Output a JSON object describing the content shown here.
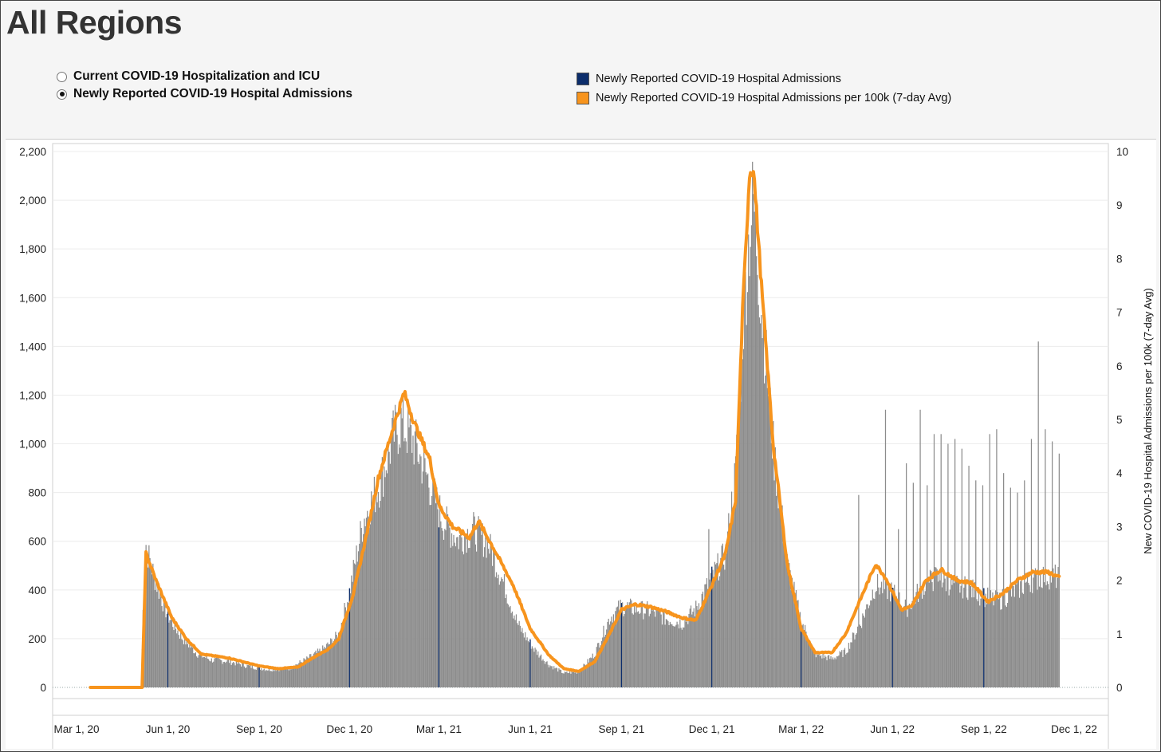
{
  "header": {
    "title": "All Regions"
  },
  "toggle": {
    "options": [
      {
        "label": "Current COVID-19 Hospitalization and ICU",
        "selected": false
      },
      {
        "label": "Newly Reported COVID-19 Hospital Admissions",
        "selected": true
      }
    ]
  },
  "legend": {
    "items": [
      {
        "label": "Newly Reported COVID-19 Hospital Admissions",
        "color": "#0c2d6b"
      },
      {
        "label": "Newly Reported COVID-19 Hospital Admissions per 100k (7-day Avg)",
        "color": "#f7941d"
      }
    ]
  },
  "chart_data": {
    "type": "bar+line",
    "title": "All Regions",
    "x_tick_labels": [
      "Mar 1, 20",
      "Jun 1, 20",
      "Sep 1, 20",
      "Dec 1, 20",
      "Mar 1, 21",
      "Jun 1, 21",
      "Sep 1, 21",
      "Dec 1, 21",
      "Mar 1, 22",
      "Jun 1, 22",
      "Sep 1, 22",
      "Dec 1, 22"
    ],
    "y_left": {
      "label": "",
      "range": [
        0,
        2200
      ],
      "ticks": [
        "0",
        "200",
        "400",
        "600",
        "800",
        "1,000",
        "1,200",
        "1,400",
        "1,600",
        "1,800",
        "2,000",
        "2,200"
      ]
    },
    "y_right": {
      "label": "New COVID-19 Hospital Admissions per 100k (7-day Avg)",
      "range": [
        0,
        10
      ],
      "ticks": [
        "0",
        "1",
        "2",
        "3",
        "4",
        "5",
        "6",
        "7",
        "8",
        "9",
        "10"
      ]
    },
    "bar_color": "#8c8c8c",
    "line_color": "#f7941d",
    "highlight_bar_color": "#0c2d6b",
    "daily_admissions_keypoints": [
      [
        "2020-03-15",
        0
      ],
      [
        "2020-05-05",
        0
      ],
      [
        "2020-05-08",
        480
      ],
      [
        "2020-05-12",
        560
      ],
      [
        "2020-05-20",
        440
      ],
      [
        "2020-06-01",
        300
      ],
      [
        "2020-06-15",
        210
      ],
      [
        "2020-07-01",
        140
      ],
      [
        "2020-07-15",
        115
      ],
      [
        "2020-08-01",
        110
      ],
      [
        "2020-08-20",
        90
      ],
      [
        "2020-09-10",
        75
      ],
      [
        "2020-10-01",
        80
      ],
      [
        "2020-10-20",
        120
      ],
      [
        "2020-11-05",
        160
      ],
      [
        "2020-11-20",
        220
      ],
      [
        "2020-12-01",
        400
      ],
      [
        "2020-12-15",
        700
      ],
      [
        "2021-01-01",
        860
      ],
      [
        "2021-01-15",
        1060
      ],
      [
        "2021-01-22",
        1110
      ],
      [
        "2021-02-05",
        1020
      ],
      [
        "2021-02-20",
        850
      ],
      [
        "2021-03-05",
        700
      ],
      [
        "2021-03-20",
        620
      ],
      [
        "2021-04-05",
        660
      ],
      [
        "2021-04-20",
        600
      ],
      [
        "2021-05-05",
        440
      ],
      [
        "2021-05-20",
        260
      ],
      [
        "2021-06-05",
        160
      ],
      [
        "2021-06-20",
        95
      ],
      [
        "2021-07-05",
        60
      ],
      [
        "2021-07-20",
        65
      ],
      [
        "2021-08-05",
        140
      ],
      [
        "2021-08-20",
        290
      ],
      [
        "2021-09-01",
        340
      ],
      [
        "2021-09-15",
        330
      ],
      [
        "2021-10-01",
        320
      ],
      [
        "2021-10-15",
        290
      ],
      [
        "2021-11-01",
        270
      ],
      [
        "2021-11-15",
        330
      ],
      [
        "2021-12-01",
        460
      ],
      [
        "2021-12-15",
        560
      ],
      [
        "2021-12-25",
        900
      ],
      [
        "2022-01-01",
        1500
      ],
      [
        "2022-01-08",
        1900
      ],
      [
        "2022-01-12",
        2040
      ],
      [
        "2022-01-20",
        1600
      ],
      [
        "2022-02-01",
        1000
      ],
      [
        "2022-02-15",
        520
      ],
      [
        "2022-03-01",
        280
      ],
      [
        "2022-03-15",
        140
      ],
      [
        "2022-04-01",
        120
      ],
      [
        "2022-04-15",
        150
      ],
      [
        "2022-05-01",
        280
      ],
      [
        "2022-05-15",
        430
      ],
      [
        "2022-06-01",
        400
      ],
      [
        "2022-06-15",
        330
      ],
      [
        "2022-07-01",
        420
      ],
      [
        "2022-07-15",
        460
      ],
      [
        "2022-08-01",
        430
      ],
      [
        "2022-08-15",
        420
      ],
      [
        "2022-09-01",
        380
      ],
      [
        "2022-09-15",
        360
      ],
      [
        "2022-10-01",
        400
      ],
      [
        "2022-10-15",
        440
      ],
      [
        "2022-11-01",
        470
      ],
      [
        "2022-11-15",
        460
      ]
    ],
    "weekly_spikes_2022": [
      [
        "2022-05-25",
        1140
      ],
      [
        "2022-06-07",
        650
      ],
      [
        "2022-06-15",
        920
      ],
      [
        "2022-06-22",
        840
      ],
      [
        "2022-06-29",
        1140
      ],
      [
        "2022-07-06",
        830
      ],
      [
        "2022-07-13",
        1040
      ],
      [
        "2022-07-20",
        1040
      ],
      [
        "2022-07-27",
        1000
      ],
      [
        "2022-08-03",
        1020
      ],
      [
        "2022-08-10",
        980
      ],
      [
        "2022-08-17",
        910
      ],
      [
        "2022-08-24",
        850
      ],
      [
        "2022-08-31",
        830
      ],
      [
        "2022-09-07",
        1040
      ],
      [
        "2022-09-14",
        1060
      ],
      [
        "2022-09-21",
        880
      ],
      [
        "2022-09-28",
        820
      ],
      [
        "2022-10-05",
        800
      ],
      [
        "2022-10-12",
        850
      ],
      [
        "2022-10-19",
        1020
      ],
      [
        "2022-10-26",
        1420
      ],
      [
        "2022-11-02",
        1060
      ],
      [
        "2022-11-09",
        1010
      ],
      [
        "2022-11-16",
        960
      ]
    ],
    "other_spikes": [
      [
        "2020-05-10",
        585
      ],
      [
        "2021-11-28",
        650
      ],
      [
        "2022-04-28",
        790
      ]
    ],
    "avg_per_100k_keypoints": [
      [
        "2020-03-15",
        0
      ],
      [
        "2020-05-06",
        0
      ],
      [
        "2020-05-10",
        2.5
      ],
      [
        "2020-05-20",
        2.0
      ],
      [
        "2020-06-05",
        1.3
      ],
      [
        "2020-06-20",
        0.9
      ],
      [
        "2020-07-05",
        0.62
      ],
      [
        "2020-08-01",
        0.55
      ],
      [
        "2020-09-01",
        0.4
      ],
      [
        "2020-09-20",
        0.35
      ],
      [
        "2020-10-10",
        0.38
      ],
      [
        "2020-10-25",
        0.55
      ],
      [
        "2020-11-10",
        0.72
      ],
      [
        "2020-11-20",
        0.9
      ],
      [
        "2020-12-05",
        1.75
      ],
      [
        "2020-12-20",
        3.0
      ],
      [
        "2020-12-30",
        3.9
      ],
      [
        "2021-01-10",
        4.6
      ],
      [
        "2021-01-20",
        5.2
      ],
      [
        "2021-01-25",
        5.5
      ],
      [
        "2021-02-05",
        4.9
      ],
      [
        "2021-02-20",
        4.25
      ],
      [
        "2021-03-01",
        3.4
      ],
      [
        "2021-03-15",
        3.0
      ],
      [
        "2021-04-01",
        2.8
      ],
      [
        "2021-04-10",
        3.1
      ],
      [
        "2021-04-25",
        2.6
      ],
      [
        "2021-05-15",
        1.9
      ],
      [
        "2021-06-01",
        1.1
      ],
      [
        "2021-06-20",
        0.6
      ],
      [
        "2021-07-05",
        0.35
      ],
      [
        "2021-07-20",
        0.3
      ],
      [
        "2021-08-05",
        0.48
      ],
      [
        "2021-08-20",
        1.0
      ],
      [
        "2021-09-01",
        1.45
      ],
      [
        "2021-09-15",
        1.55
      ],
      [
        "2021-10-01",
        1.5
      ],
      [
        "2021-10-15",
        1.42
      ],
      [
        "2021-11-01",
        1.3
      ],
      [
        "2021-11-15",
        1.25
      ],
      [
        "2021-12-01",
        1.9
      ],
      [
        "2021-12-15",
        2.5
      ],
      [
        "2021-12-25",
        3.5
      ],
      [
        "2022-01-01",
        7.0
      ],
      [
        "2022-01-08",
        9.6
      ],
      [
        "2022-01-12",
        9.7
      ],
      [
        "2022-01-20",
        7.5
      ],
      [
        "2022-02-01",
        4.5
      ],
      [
        "2022-02-15",
        2.3
      ],
      [
        "2022-03-01",
        1.1
      ],
      [
        "2022-03-15",
        0.65
      ],
      [
        "2022-04-01",
        0.65
      ],
      [
        "2022-04-15",
        1.0
      ],
      [
        "2022-05-01",
        1.7
      ],
      [
        "2022-05-15",
        2.3
      ],
      [
        "2022-05-25",
        2.05
      ],
      [
        "2022-06-10",
        1.45
      ],
      [
        "2022-06-20",
        1.5
      ],
      [
        "2022-07-05",
        2.0
      ],
      [
        "2022-07-20",
        2.2
      ],
      [
        "2022-08-05",
        2.0
      ],
      [
        "2022-08-20",
        1.95
      ],
      [
        "2022-09-05",
        1.6
      ],
      [
        "2022-09-20",
        1.75
      ],
      [
        "2022-10-05",
        2.0
      ],
      [
        "2022-10-20",
        2.15
      ],
      [
        "2022-11-05",
        2.15
      ],
      [
        "2022-11-16",
        2.05
      ]
    ],
    "highlight_bar_dates": [
      "2020-06-01",
      "2020-09-01",
      "2020-12-01",
      "2021-03-01",
      "2021-06-01",
      "2021-09-01",
      "2021-12-01",
      "2022-03-01",
      "2022-06-01",
      "2022-09-01"
    ]
  }
}
